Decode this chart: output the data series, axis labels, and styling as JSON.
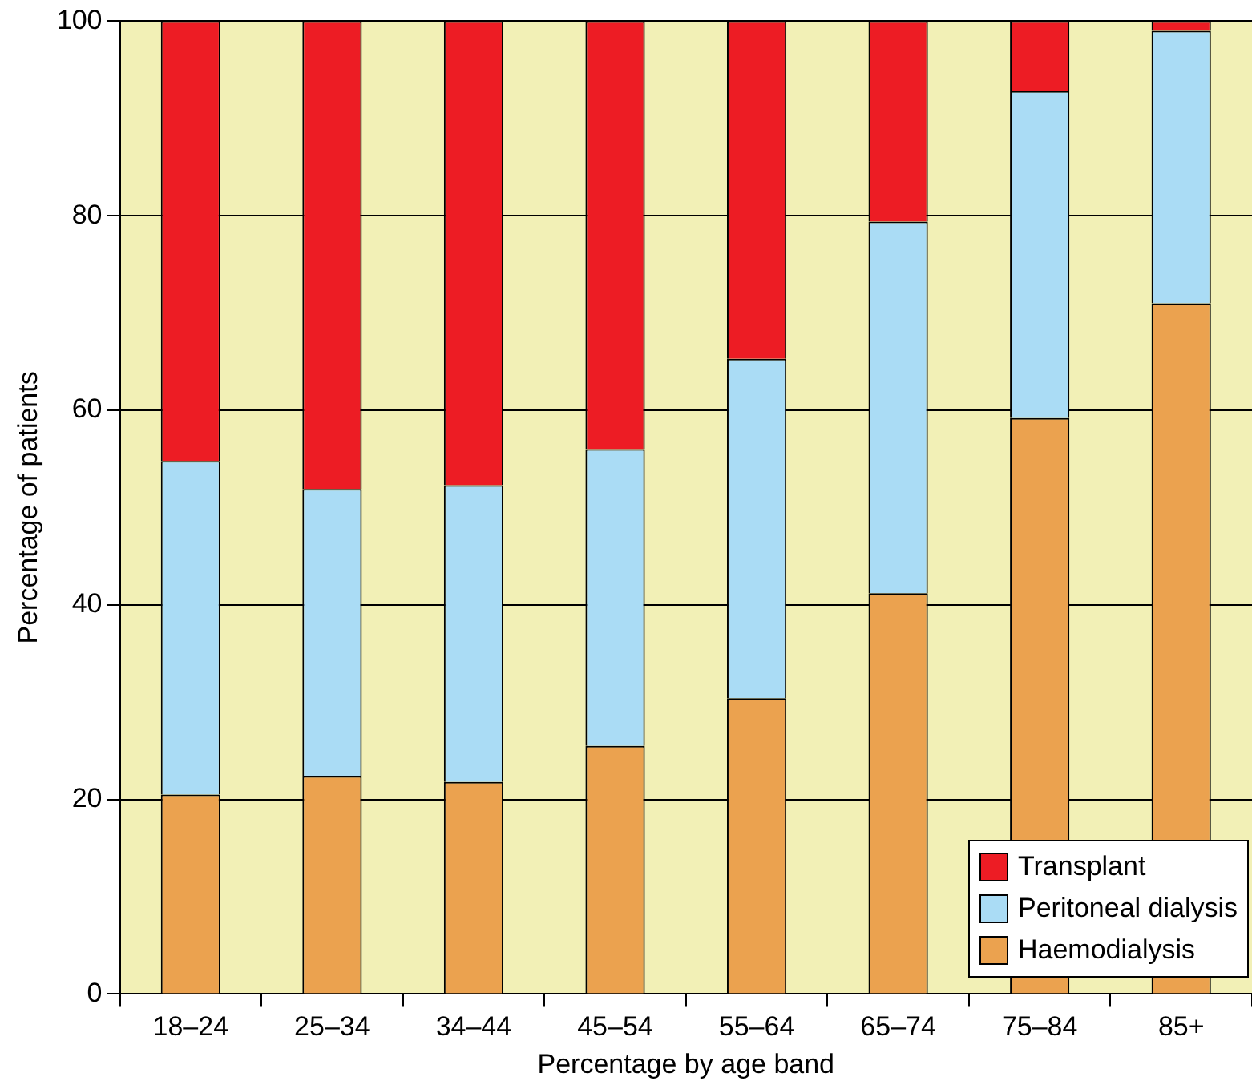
{
  "chart_data": {
    "type": "bar",
    "stacked": true,
    "xlabel": "Percentage by age band",
    "ylabel": "Percentage of patients",
    "categories": [
      "18–24",
      "25–34",
      "34–44",
      "45–54",
      "55–64",
      "65–74",
      "75–84",
      "85+"
    ],
    "series": [
      {
        "name": "Haemodialysis",
        "color": "#eba24f",
        "values": [
          20.5,
          22.4,
          21.8,
          25.5,
          30.4,
          41.2,
          59.2,
          71
        ]
      },
      {
        "name": "Peritoneal dialysis",
        "color": "#aadcf5",
        "values": [
          34.3,
          29.5,
          30.5,
          30.5,
          34.9,
          38.2,
          33.6,
          28
        ]
      },
      {
        "name": "Transplant",
        "color": "#ed1c24",
        "values": [
          45.2,
          48.1,
          47.7,
          44,
          34.7,
          20.6,
          7.2,
          1
        ]
      }
    ],
    "ylim": [
      0,
      100
    ],
    "yticks": [
      0,
      20,
      40,
      60,
      80,
      100
    ],
    "grid": "y",
    "legend": "bottom right"
  }
}
